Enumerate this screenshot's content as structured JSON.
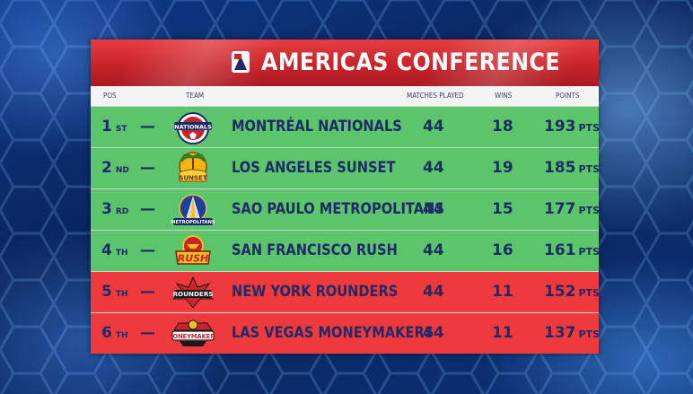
{
  "title": "AMERICAS CONFERENCE",
  "columns": {
    "pos": "POS",
    "team": "TEAM",
    "matches_played": "MATCHES PLAYED",
    "wins": "WINS",
    "points": "POINTS"
  },
  "rows": [
    {
      "pos": "1",
      "suffix": "ST",
      "change": "—",
      "team": "MONTRÉAL NATIONALS",
      "logo_text": "NATIONALS",
      "logo_icon": "nationals-logo-icon",
      "matches": "44",
      "wins": "18",
      "points": "193",
      "pts_label": "PTS",
      "status": "qualified",
      "row_color": "#5cc46a"
    },
    {
      "pos": "2",
      "suffix": "ND",
      "change": "—",
      "team": "LOS ANGELES SUNSET",
      "logo_text": "SUNSET",
      "logo_icon": "sunset-logo-icon",
      "matches": "44",
      "wins": "19",
      "points": "185",
      "pts_label": "PTS",
      "status": "qualified",
      "row_color": "#5cc46a"
    },
    {
      "pos": "3",
      "suffix": "RD",
      "change": "—",
      "team": "SAO PAULO METROPOLITANS",
      "logo_text": "METROPOLITANS",
      "logo_icon": "metropolitans-logo-icon",
      "matches": "44",
      "wins": "15",
      "points": "177",
      "pts_label": "PTS",
      "status": "qualified",
      "row_color": "#5cc46a"
    },
    {
      "pos": "4",
      "suffix": "TH",
      "change": "—",
      "team": "SAN FRANCISCO RUSH",
      "logo_text": "RUSH",
      "logo_icon": "rush-logo-icon",
      "matches": "44",
      "wins": "16",
      "points": "161",
      "pts_label": "PTS",
      "status": "qualified",
      "row_color": "#5cc46a"
    },
    {
      "pos": "5",
      "suffix": "TH",
      "change": "—",
      "team": "NEW YORK ROUNDERS",
      "logo_text": "ROUNDERS",
      "logo_icon": "rounders-logo-icon",
      "matches": "44",
      "wins": "11",
      "points": "152",
      "pts_label": "PTS",
      "status": "eliminated",
      "row_color": "#ee3a3c"
    },
    {
      "pos": "6",
      "suffix": "TH",
      "change": "—",
      "team": "LAS VEGAS MONEYMAKERS",
      "logo_text": "MONEYMAKERS",
      "logo_icon": "moneymakers-logo-icon",
      "matches": "44",
      "wins": "11",
      "points": "137",
      "pts_label": "PTS",
      "status": "eliminated",
      "row_color": "#ee3a3c"
    }
  ],
  "colors": {
    "header_red": "#c8242a",
    "qualified_green": "#5cc46a",
    "eliminated_red": "#ee3a3c",
    "text_navy": "#1f2a6b",
    "background_blue": "#0a2a6e"
  }
}
